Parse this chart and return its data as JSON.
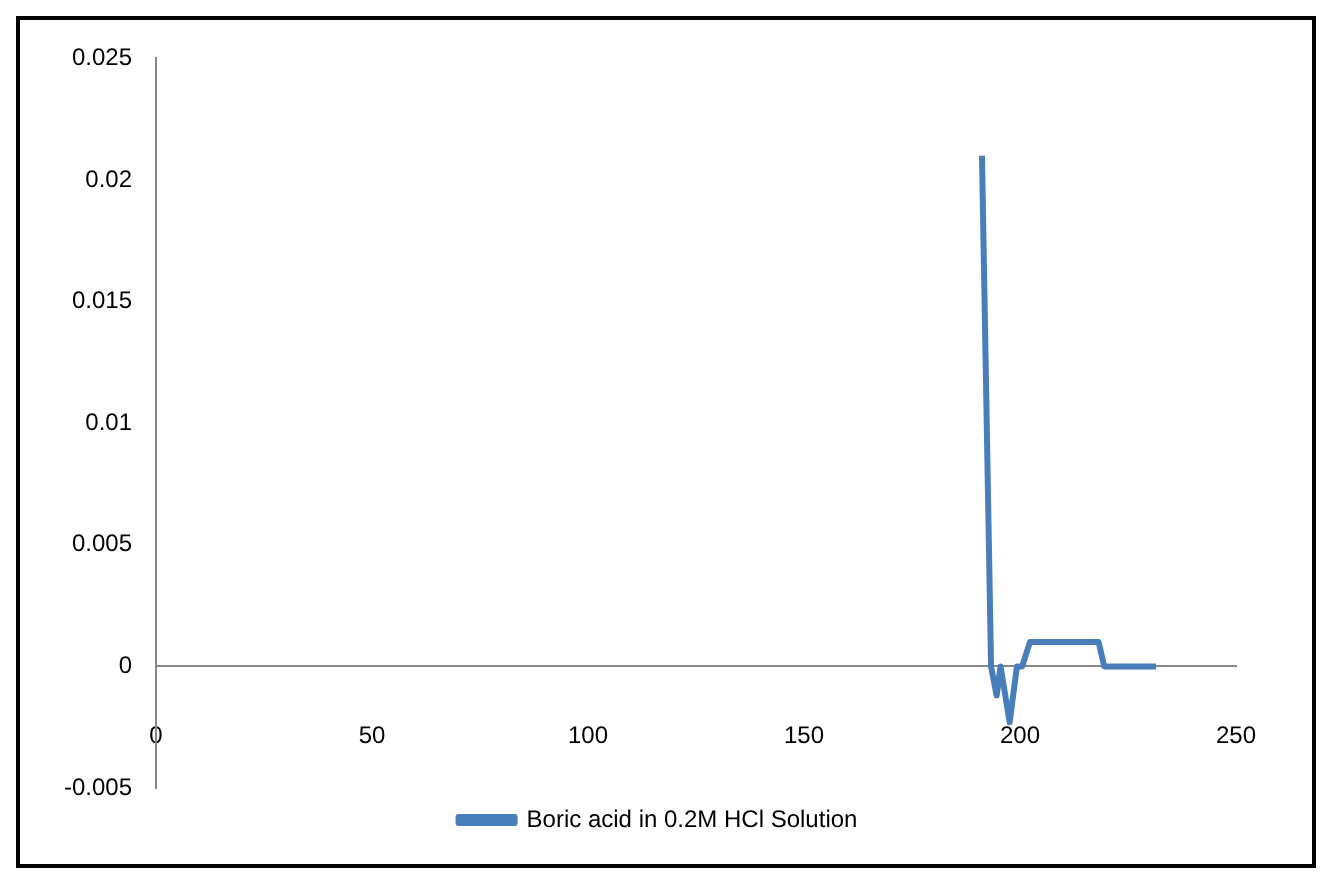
{
  "chart_data": {
    "type": "line",
    "xlim": [
      0,
      250
    ],
    "xticks": [
      0,
      50,
      100,
      150,
      200,
      250
    ],
    "ylim": [
      -0.005,
      0.025
    ],
    "yticks": [
      -0.005,
      0,
      0.005,
      0.01,
      0.015,
      0.02,
      0.025
    ],
    "grid": false,
    "legend": "bottom",
    "marker": "none",
    "series": [
      {
        "name": "Boric acid in 0.2M HCl Solution",
        "color": "#4a7ebb",
        "x": [
          191.2,
          193.3,
          194.6,
          195.5,
          197.6,
          199.3,
          200.5,
          202.3,
          218.2,
          219.5,
          231.5
        ],
        "values": [
          0.021,
          0,
          -0.0012,
          0,
          -0.0023,
          0,
          0,
          0.001,
          0.001,
          0,
          0
        ]
      }
    ]
  }
}
